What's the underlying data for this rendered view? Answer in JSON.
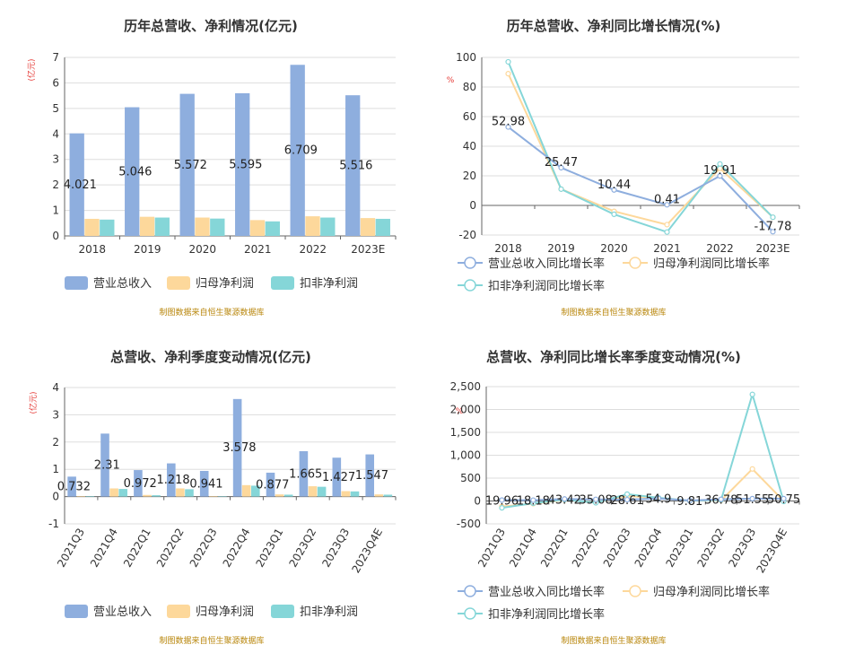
{
  "colors": {
    "revenue": "#8eaede",
    "netprofit": "#fdd89b",
    "deducted": "#85d6d8",
    "axis": "#666666",
    "grid": "#dddddd"
  },
  "legend_bar": [
    "营业总收入",
    "归母净利润",
    "扣非净利润"
  ],
  "legend_line": [
    "营业总收入同比增长率",
    "归母净利润同比增长率",
    "扣非净利润同比增长率"
  ],
  "source": "制图数据来自恒生聚源数据库",
  "chart_data": [
    {
      "id": "annual_bar",
      "type": "bar",
      "title": "历年总营收、净利情况(亿元)",
      "unit": "(亿元)",
      "categories": [
        "2018",
        "2019",
        "2020",
        "2021",
        "2022",
        "2023E"
      ],
      "ylim": [
        0,
        7
      ],
      "yticks": [
        0,
        1,
        2,
        3,
        4,
        5,
        6,
        7
      ],
      "series": [
        {
          "name": "营业总收入",
          "values": [
            4.021,
            5.046,
            5.572,
            5.595,
            6.709,
            5.516
          ],
          "labels": [
            "4.021",
            "5.046",
            "5.572",
            "5.595",
            "6.709",
            "5.516"
          ]
        },
        {
          "name": "归母净利润",
          "values": [
            0.67,
            0.75,
            0.72,
            0.62,
            0.77,
            0.7
          ]
        },
        {
          "name": "扣非净利润",
          "values": [
            0.64,
            0.72,
            0.68,
            0.57,
            0.72,
            0.67
          ]
        }
      ]
    },
    {
      "id": "annual_line",
      "type": "line",
      "title": "历年总营收、净利同比增长情况(%)",
      "unit": "%",
      "categories": [
        "2018",
        "2019",
        "2020",
        "2021",
        "2022",
        "2023E"
      ],
      "ylim": [
        -20,
        100
      ],
      "yticks": [
        -20,
        0,
        20,
        40,
        60,
        80,
        100
      ],
      "series": [
        {
          "name": "营业总收入同比增长率",
          "values": [
            52.98,
            25.47,
            10.44,
            0.41,
            19.91,
            -17.78
          ],
          "labels": [
            "52.98",
            "25.47",
            "10.44",
            "0.41",
            "19.91",
            "-17.78"
          ]
        },
        {
          "name": "归母净利润同比增长率",
          "values": [
            89,
            11,
            -4,
            -13,
            25,
            -8
          ]
        },
        {
          "name": "扣非净利润同比增长率",
          "values": [
            97,
            11,
            -6,
            -18,
            28,
            -8
          ]
        }
      ]
    },
    {
      "id": "quarter_bar",
      "type": "bar",
      "title": "总营收、净利季度变动情况(亿元)",
      "unit": "(亿元)",
      "categories": [
        "2021Q3",
        "2021Q4",
        "2022Q1",
        "2022Q2",
        "2022Q3",
        "2022Q4",
        "2023Q1",
        "2023Q2",
        "2023Q3",
        "2023Q4E"
      ],
      "ylim": [
        -1,
        4
      ],
      "yticks": [
        -1,
        0,
        1,
        2,
        3,
        4
      ],
      "series": [
        {
          "name": "营业总收入",
          "values": [
            0.732,
            2.31,
            0.972,
            1.218,
            0.941,
            3.578,
            0.877,
            1.665,
            1.427,
            1.547
          ],
          "labels": [
            "0.732",
            "2.31",
            "0.972",
            "1.218",
            "0.941",
            "3.578",
            "0.877",
            "1.665",
            "1.427",
            "1.547"
          ]
        },
        {
          "name": "归母净利润",
          "values": [
            0.02,
            0.3,
            0.06,
            0.3,
            0.02,
            0.42,
            0.08,
            0.38,
            0.2,
            0.08
          ]
        },
        {
          "name": "扣非净利润",
          "values": [
            0.02,
            0.28,
            0.05,
            0.27,
            0.01,
            0.4,
            0.07,
            0.36,
            0.19,
            0.07
          ]
        }
      ]
    },
    {
      "id": "quarter_line",
      "type": "line",
      "title": "总营收、净利同比增长率季度变动情况(%)",
      "unit": "%",
      "categories": [
        "2021Q3",
        "2021Q4",
        "2022Q1",
        "2022Q2",
        "2022Q3",
        "2022Q4",
        "2023Q1",
        "2023Q2",
        "2023Q3",
        "2023Q4E"
      ],
      "ylim": [
        -500,
        2500
      ],
      "yticks": [
        -500,
        0,
        500,
        1000,
        1500,
        2000,
        2500
      ],
      "ytick_labels": [
        "-500",
        "0",
        "500",
        "1,000",
        "1,500",
        "2,000",
        "2,500"
      ],
      "series": [
        {
          "name": "营业总收入同比增长率",
          "values": [
            19.96,
            18.18,
            43.42,
            35.08,
            28.61,
            54.9,
            9.81,
            36.78,
            51.55,
            50.75
          ],
          "labels": [
            "19.96",
            "18.18",
            "43.42",
            "35.08",
            "28.61",
            "54.9",
            "9.81",
            "36.78",
            "51.55",
            "50.75"
          ]
        },
        {
          "name": "归母净利润同比增长率",
          "values": [
            -120,
            -60,
            20,
            -30,
            110,
            60,
            5,
            10,
            700,
            0
          ]
        },
        {
          "name": "扣非净利润同比增长率",
          "values": [
            -150,
            -50,
            30,
            -40,
            150,
            70,
            5,
            20,
            2330,
            -10
          ]
        }
      ]
    }
  ]
}
